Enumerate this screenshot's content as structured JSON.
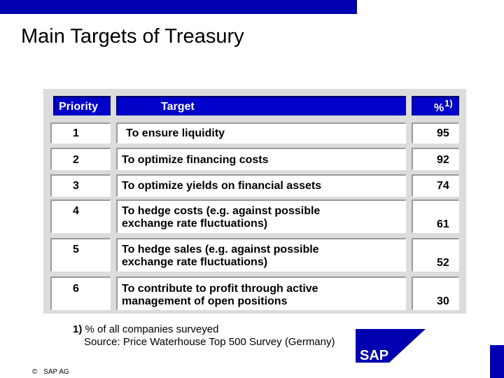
{
  "slide": {
    "title": "Main Targets of Treasury"
  },
  "table": {
    "headers": {
      "priority": "Priority",
      "target": "Target",
      "percent": "%",
      "percent_note": "1)"
    },
    "rows": [
      {
        "priority": "1",
        "target_lines": [
          "To ensure liquidity"
        ],
        "percent": "95"
      },
      {
        "priority": "2",
        "target_lines": [
          "To optimize financing costs"
        ],
        "percent": "92"
      },
      {
        "priority": "3",
        "target_lines": [
          "To optimize yields on financial assets"
        ],
        "percent": "74"
      },
      {
        "priority": "4",
        "target_lines": [
          "To hedge costs (e.g. against possible",
          "exchange rate fluctuations)"
        ],
        "percent": "61"
      },
      {
        "priority": "5",
        "target_lines": [
          "To hedge sales (e.g. against possible",
          "exchange rate fluctuations)"
        ],
        "percent": "52"
      },
      {
        "priority": "6",
        "target_lines": [
          "To contribute to profit through active",
          "management of open positions"
        ],
        "percent": "30"
      }
    ]
  },
  "footnote": {
    "marker": "1)",
    "line1": "% of all companies surveyed",
    "line2": "Source: Price Waterhouse Top 500 Survey (Germany)"
  },
  "footer": {
    "copyright_symbol": "©",
    "company": "SAP AG"
  },
  "logo": {
    "text": "SAP",
    "icon": "sap-logo-icon",
    "color": "#0000b0"
  },
  "colors": {
    "accent": "#0000b0",
    "header_fill": "#0000c8",
    "panel": "#dcdcdc"
  }
}
